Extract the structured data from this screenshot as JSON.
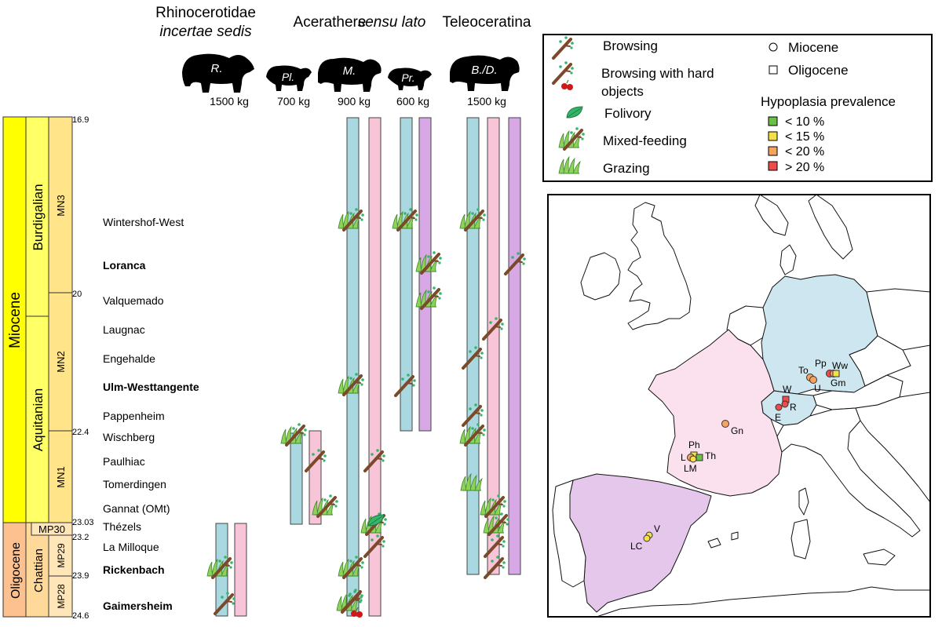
{
  "clades": {
    "rhino": "Rhinocerotidae",
    "rhino_sub": "incertae sedis",
    "acer_a": "Acerathere",
    "acer_b": "sensu lato",
    "teleo": "Teleoceratina"
  },
  "taxa": [
    {
      "abbr": "R.",
      "mass": "1500 kg"
    },
    {
      "abbr": "Pl.",
      "mass": "700 kg"
    },
    {
      "abbr": "M.",
      "mass": "900 kg"
    },
    {
      "abbr": "Pr.",
      "mass": "600 kg"
    },
    {
      "abbr": "B./D.",
      "mass": "1500 kg"
    }
  ],
  "timescale": {
    "epochs": [
      "Miocene",
      "Oligocene"
    ],
    "stages": [
      "Burdigalian",
      "Aquitanian",
      "Chattian"
    ],
    "zones": [
      "MN3",
      "MN2",
      "MN1",
      "MP30",
      "MP29",
      "MP28"
    ],
    "ages": [
      "16.9",
      "20",
      "22.4",
      "23.03",
      "23.2",
      "23.9",
      "24.6"
    ]
  },
  "localities": [
    {
      "name": "Wintershof-West",
      "bold": false
    },
    {
      "name": "Loranca",
      "bold": true
    },
    {
      "name": "Valquemado",
      "bold": false
    },
    {
      "name": "Laugnac",
      "bold": false
    },
    {
      "name": "Engehalde",
      "bold": false
    },
    {
      "name": "Ulm-Westtangente",
      "bold": true
    },
    {
      "name": "Pappenheim",
      "bold": false
    },
    {
      "name": "Wischberg",
      "bold": false
    },
    {
      "name": "Paulhiac",
      "bold": false
    },
    {
      "name": "Tomerdingen",
      "bold": false
    },
    {
      "name": "Gannat (OMt)",
      "bold": false
    },
    {
      "name": "Thézels",
      "bold": false
    },
    {
      "name": "La Milloque",
      "bold": false
    },
    {
      "name": "Rickenbach",
      "bold": true
    },
    {
      "name": "Gaimersheim",
      "bold": true
    }
  ],
  "legend": {
    "diets": [
      "Browsing",
      "Browsing with hard",
      "objects",
      "Folivory",
      "Mixed-feeding",
      "Grazing"
    ],
    "epoch_title_1": "Miocene",
    "epoch_title_2": "Oligocene",
    "hypo_title": "Hypoplasia prevalence",
    "hypo_items": [
      "< 10 %",
      "< 15 %",
      "< 20 %",
      "> 20 %"
    ]
  },
  "map": {
    "labels": [
      "Pp",
      "Ww",
      "To",
      "U",
      "Gm",
      "W",
      "R",
      "E",
      "Gn",
      "Ph",
      "L",
      "Th",
      "LM",
      "V",
      "LC"
    ]
  },
  "colors": {
    "epoch_miocene": "#ffff00",
    "epoch_oligocene": "#fdc08f",
    "stage_miocene": "#ffff66",
    "stage_oligocene": "#fed99a",
    "zone_miocene": "#ffe48a",
    "zone_oligocene": "#fee6b8",
    "bar_blue": "#a9d8e0",
    "bar_pink": "#f7c4d8",
    "bar_purple": "#d7a7e6",
    "map_germany": "#cde6ef",
    "map_france": "#fbe1ee",
    "map_spain": "#e5c7ec",
    "hypo_lt10": "#6cc04a",
    "hypo_lt15": "#f5e04a",
    "hypo_lt20": "#f4a460",
    "hypo_gt20": "#ee4b4b",
    "leaf": "#35b56a",
    "grass": "#8fd15a",
    "branch": "#7a4a2a",
    "berry": "#d01818"
  }
}
